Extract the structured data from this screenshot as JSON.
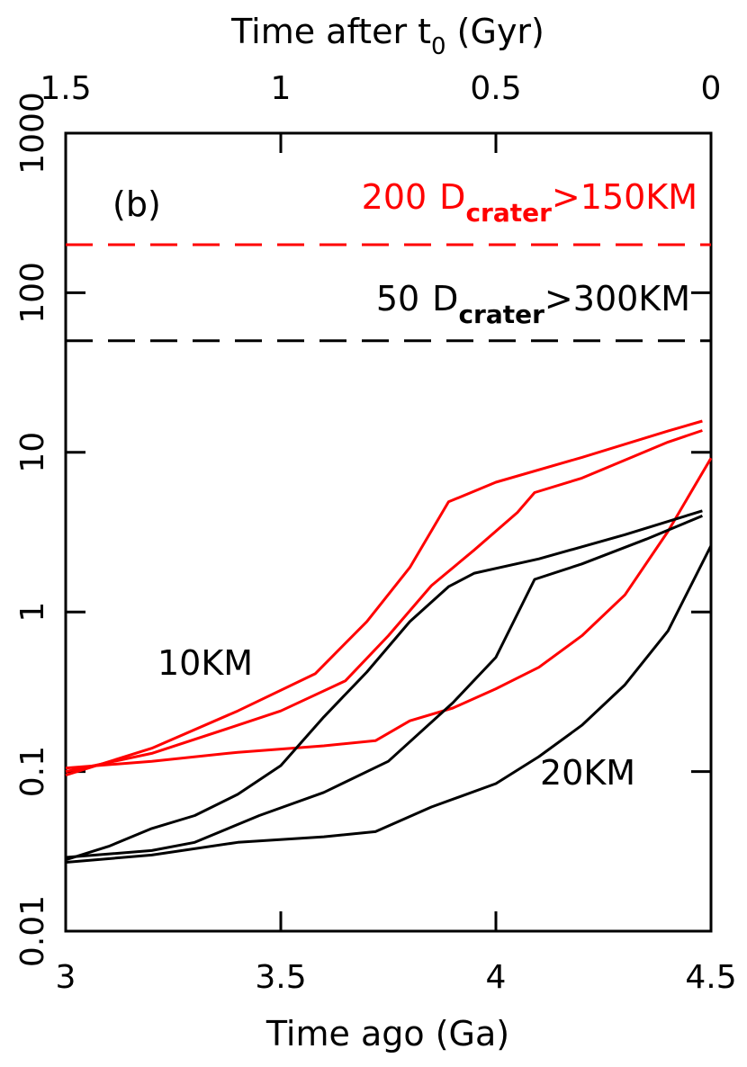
{
  "chart_data": {
    "type": "line",
    "xlabel": "Time ago (Ga)",
    "x2label": {
      "main": "Time after t",
      "sub": "0",
      "rest": " (Gyr)"
    },
    "xlim": [
      3,
      4.5
    ],
    "xticks": [
      3,
      3.5,
      4,
      4.5
    ],
    "x2lim": [
      1.5,
      0
    ],
    "x2ticks": [
      1.5,
      1,
      0.5,
      0
    ],
    "ylim": [
      0.01,
      1000
    ],
    "yticks": [
      0.01,
      0.1,
      1,
      10,
      100,
      1000
    ],
    "log_y": true,
    "hlines": [
      {
        "value": 200,
        "color": "#ff0000",
        "label": "200",
        "symbol": "D",
        "sub": "crater",
        "condition": ">150KM"
      },
      {
        "value": 50,
        "color": "#000000",
        "label": "50",
        "symbol": "D",
        "sub": "crater",
        "condition": ">300KM"
      }
    ],
    "annotations": [
      {
        "text": "(b)",
        "color": "#000000"
      },
      {
        "text": "10KM",
        "color": "#ff0000"
      },
      {
        "text": "20KM",
        "color": "#000000"
      }
    ],
    "series": [
      {
        "color": "#ff0000",
        "x": [
          3.0,
          3.2,
          3.4,
          3.58,
          3.7,
          3.8,
          3.89,
          4.0,
          4.2,
          4.4,
          4.48
        ],
        "values": [
          0.095,
          0.14,
          0.24,
          0.41,
          0.87,
          1.9,
          4.9,
          6.5,
          9.3,
          13.6,
          15.7
        ]
      },
      {
        "color": "#ff0000",
        "x": [
          3.0,
          3.2,
          3.4,
          3.5,
          3.65,
          3.75,
          3.85,
          3.95,
          4.05,
          4.09,
          4.2,
          4.4,
          4.48
        ],
        "values": [
          0.1,
          0.13,
          0.195,
          0.24,
          0.37,
          0.71,
          1.46,
          2.45,
          4.2,
          5.6,
          6.9,
          11.6,
          13.7
        ]
      },
      {
        "color": "#ff0000",
        "x": [
          3.0,
          3.2,
          3.4,
          3.6,
          3.72,
          3.8,
          3.9,
          4.0,
          4.1,
          4.2,
          4.3,
          4.4,
          4.5
        ],
        "values": [
          0.105,
          0.116,
          0.132,
          0.145,
          0.156,
          0.208,
          0.25,
          0.33,
          0.45,
          0.71,
          1.28,
          3.2,
          9.2
        ]
      },
      {
        "color": "#000000",
        "x": [
          3.0,
          3.1,
          3.2,
          3.3,
          3.4,
          3.5,
          3.6,
          3.7,
          3.8,
          3.89,
          3.95,
          4.1,
          4.3,
          4.48
        ],
        "values": [
          0.028,
          0.034,
          0.044,
          0.053,
          0.072,
          0.109,
          0.22,
          0.42,
          0.87,
          1.44,
          1.75,
          2.15,
          3.05,
          4.3
        ]
      },
      {
        "color": "#000000",
        "x": [
          3.0,
          3.2,
          3.3,
          3.45,
          3.6,
          3.75,
          3.9,
          4.0,
          4.09,
          4.2,
          4.35,
          4.48
        ],
        "values": [
          0.029,
          0.032,
          0.036,
          0.053,
          0.074,
          0.116,
          0.27,
          0.52,
          1.6,
          2.0,
          2.86,
          4.0
        ]
      },
      {
        "color": "#000000",
        "x": [
          3.0,
          3.2,
          3.4,
          3.6,
          3.72,
          3.85,
          4.0,
          4.1,
          4.2,
          4.3,
          4.4,
          4.5
        ],
        "values": [
          0.027,
          0.03,
          0.036,
          0.039,
          0.042,
          0.06,
          0.084,
          0.124,
          0.195,
          0.35,
          0.76,
          2.6
        ]
      }
    ]
  }
}
